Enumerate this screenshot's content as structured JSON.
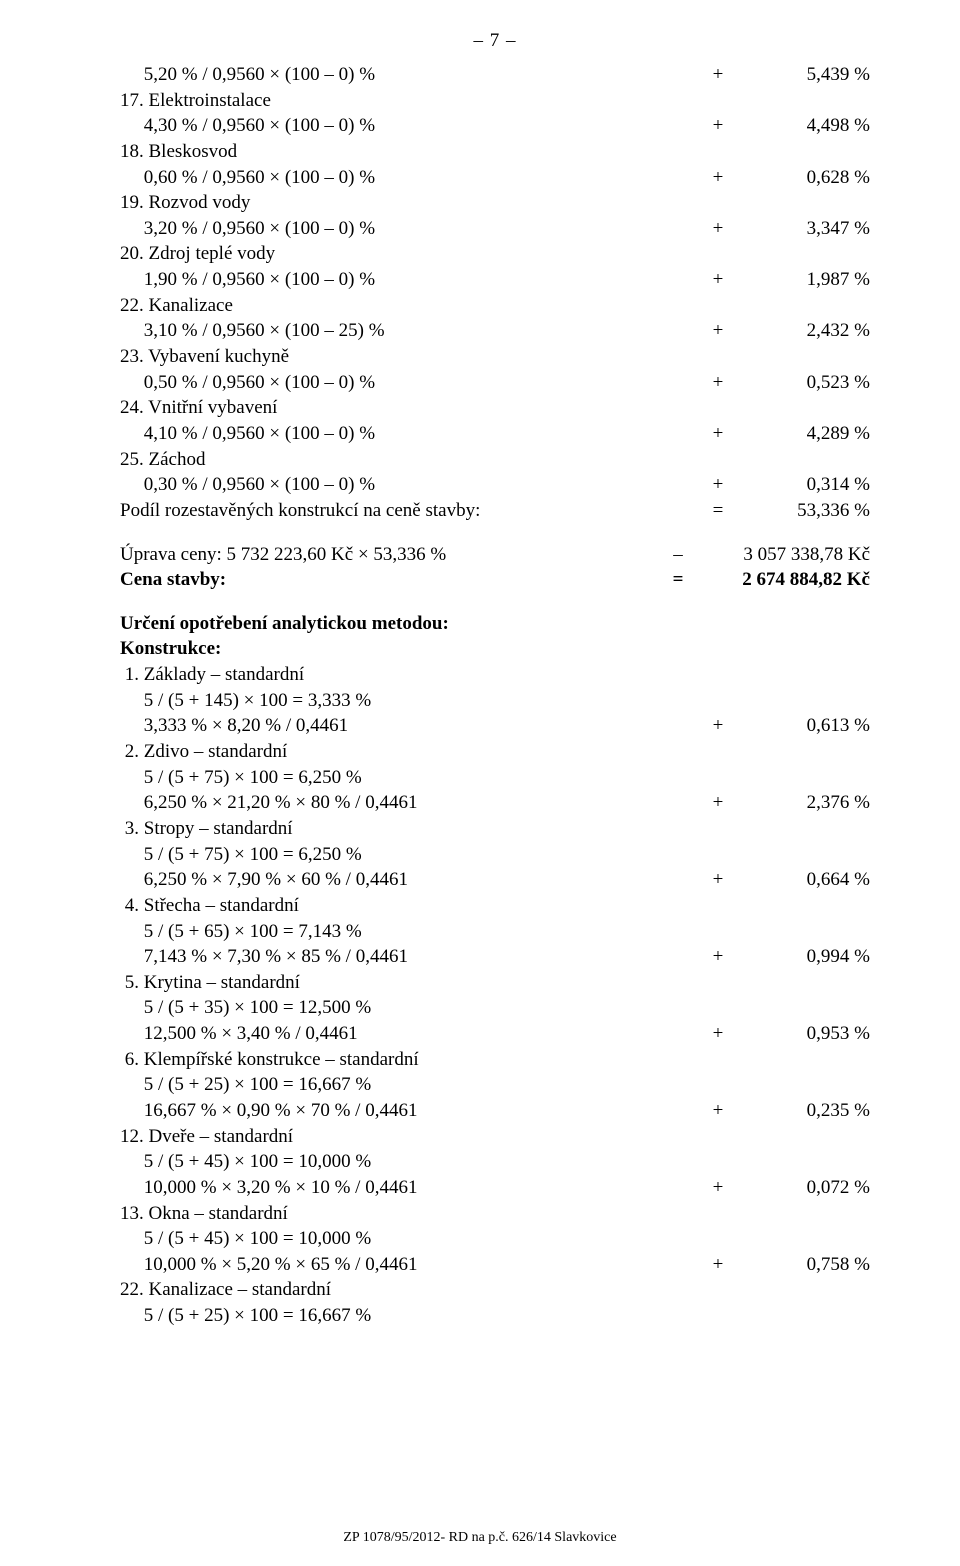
{
  "page_number_label": "– 7 –",
  "section_a": [
    {
      "num": "",
      "label": "     5,20 % / 0,9560 × (100 – 0) %",
      "sign": "+",
      "val": "5,439 %"
    },
    {
      "num": "17.",
      "label": " Elektroinstalace",
      "sign": "",
      "val": ""
    },
    {
      "num": "",
      "label": "     4,30 % / 0,9560 × (100 – 0) %",
      "sign": "+",
      "val": "4,498 %"
    },
    {
      "num": "18.",
      "label": " Bleskosvod",
      "sign": "",
      "val": ""
    },
    {
      "num": "",
      "label": "     0,60 % / 0,9560 × (100 – 0) %",
      "sign": "+",
      "val": "0,628 %"
    },
    {
      "num": "19.",
      "label": " Rozvod vody",
      "sign": "",
      "val": ""
    },
    {
      "num": "",
      "label": "     3,20 % / 0,9560 × (100 – 0) %",
      "sign": "+",
      "val": "3,347 %"
    },
    {
      "num": "20.",
      "label": " Zdroj teplé vody",
      "sign": "",
      "val": ""
    },
    {
      "num": "",
      "label": "     1,90 % / 0,9560 × (100 – 0) %",
      "sign": "+",
      "val": "1,987 %"
    },
    {
      "num": "22.",
      "label": " Kanalizace",
      "sign": "",
      "val": ""
    },
    {
      "num": "",
      "label": "     3,10 % / 0,9560 × (100 – 25) %",
      "sign": "+",
      "val": "2,432 %"
    },
    {
      "num": "23.",
      "label": " Vybavení kuchyně",
      "sign": "",
      "val": ""
    },
    {
      "num": "",
      "label": "     0,50 % / 0,9560 × (100 – 0) %",
      "sign": "+",
      "val": "0,523 %"
    },
    {
      "num": "24.",
      "label": " Vnitřní vybavení",
      "sign": "",
      "val": ""
    },
    {
      "num": "",
      "label": "     4,10 % / 0,9560 × (100 – 0) %",
      "sign": "+",
      "val": "4,289 %"
    },
    {
      "num": "25.",
      "label": " Záchod",
      "sign": "",
      "val": ""
    },
    {
      "num": "",
      "label": "     0,30 % / 0,9560 × (100 – 0) %",
      "sign": "+",
      "val": "0,314 %"
    },
    {
      "num": "",
      "label": "Podíl rozestavěných konstrukcí na ceně stavby:",
      "sign": "=",
      "val": "53,336 %"
    }
  ],
  "adjust": {
    "label": "Úprava ceny: 5 732 223,60 Kč × 53,336 %",
    "sign": "–",
    "val": "3 057 338,78 Kč"
  },
  "total": {
    "label": "Cena stavby:",
    "sign": "=",
    "val": "2 674 884,82 Kč"
  },
  "section_b_title": "Určení opotřebení analytickou metodou:",
  "section_b_sub": "Konstrukce:",
  "section_b": [
    {
      "num": " 1.",
      "label": " Základy – standardní",
      "sign": "",
      "val": ""
    },
    {
      "num": "",
      "label": "     5 / (5 + 145) × 100 = 3,333 %",
      "sign": "",
      "val": ""
    },
    {
      "num": "",
      "label": "     3,333 % × 8,20 % / 0,4461",
      "sign": "+",
      "val": "0,613 %"
    },
    {
      "num": " 2.",
      "label": " Zdivo – standardní",
      "sign": "",
      "val": ""
    },
    {
      "num": "",
      "label": "     5 / (5 + 75) × 100 = 6,250 %",
      "sign": "",
      "val": ""
    },
    {
      "num": "",
      "label": "     6,250 % × 21,20 % × 80 % / 0,4461",
      "sign": "+",
      "val": "2,376 %"
    },
    {
      "num": " 3.",
      "label": " Stropy – standardní",
      "sign": "",
      "val": ""
    },
    {
      "num": "",
      "label": "     5 / (5 + 75) × 100 = 6,250 %",
      "sign": "",
      "val": ""
    },
    {
      "num": "",
      "label": "     6,250 % × 7,90 % × 60 % / 0,4461",
      "sign": "+",
      "val": "0,664 %"
    },
    {
      "num": " 4.",
      "label": " Střecha – standardní",
      "sign": "",
      "val": ""
    },
    {
      "num": "",
      "label": "     5 / (5 + 65) × 100 = 7,143 %",
      "sign": "",
      "val": ""
    },
    {
      "num": "",
      "label": "     7,143 % × 7,30 % × 85 % / 0,4461",
      "sign": "+",
      "val": "0,994 %"
    },
    {
      "num": " 5.",
      "label": " Krytina – standardní",
      "sign": "",
      "val": ""
    },
    {
      "num": "",
      "label": "     5 / (5 + 35) × 100 = 12,500 %",
      "sign": "",
      "val": ""
    },
    {
      "num": "",
      "label": "     12,500 % × 3,40 % / 0,4461",
      "sign": "+",
      "val": "0,953 %"
    },
    {
      "num": " 6.",
      "label": " Klempířské konstrukce – standardní",
      "sign": "",
      "val": ""
    },
    {
      "num": "",
      "label": "     5 / (5 + 25) × 100 = 16,667 %",
      "sign": "",
      "val": ""
    },
    {
      "num": "",
      "label": "     16,667 % × 0,90 % × 70 % / 0,4461",
      "sign": "+",
      "val": "0,235 %"
    },
    {
      "num": "12.",
      "label": " Dveře – standardní",
      "sign": "",
      "val": ""
    },
    {
      "num": "",
      "label": "     5 / (5 + 45) × 100 = 10,000 %",
      "sign": "",
      "val": ""
    },
    {
      "num": "",
      "label": "     10,000 % × 3,20 % × 10 % / 0,4461",
      "sign": "+",
      "val": "0,072 %"
    },
    {
      "num": "13.",
      "label": " Okna – standardní",
      "sign": "",
      "val": ""
    },
    {
      "num": "",
      "label": "     5 / (5 + 45) × 100 = 10,000 %",
      "sign": "",
      "val": ""
    },
    {
      "num": "",
      "label": "     10,000 % × 5,20 % × 65 % / 0,4461",
      "sign": "+",
      "val": "0,758 %"
    },
    {
      "num": "22.",
      "label": " Kanalizace – standardní",
      "sign": "",
      "val": ""
    },
    {
      "num": "",
      "label": "     5 / (5 + 25) × 100 = 16,667 %",
      "sign": "",
      "val": ""
    }
  ],
  "footer": "ZP 1078/95/2012- RD na p.č. 626/14 Slavkovice"
}
